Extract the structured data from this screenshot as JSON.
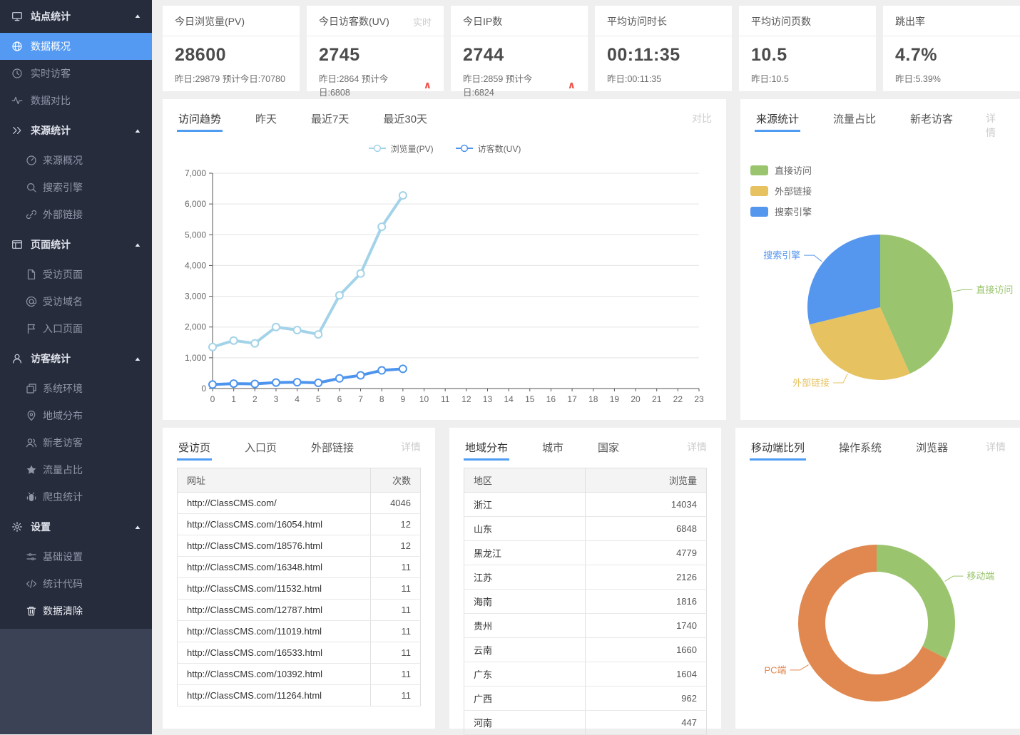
{
  "colors": {
    "accent": "#4e9df2",
    "sidebar_active": "#549af3",
    "arrow_up": "#f0544c"
  },
  "sidebar": {
    "sections": [
      {
        "label": "站点统计",
        "icon": "display-icon",
        "caret": "caret-up-icon",
        "divider": true,
        "items": [
          {
            "label": "数据概况",
            "icon": "globe-icon",
            "active": true
          },
          {
            "label": "实时访客",
            "icon": "clock-icon"
          },
          {
            "label": "数据对比",
            "icon": "pulse-icon"
          }
        ]
      },
      {
        "label": "来源统计",
        "icon": "chevrons-right-icon",
        "caret": "caret-up-icon",
        "items": [
          {
            "label": "来源概况",
            "icon": "gauge-icon",
            "sub": true
          },
          {
            "label": "搜索引擎",
            "icon": "search-icon",
            "sub": true
          },
          {
            "label": "外部链接",
            "icon": "link-icon",
            "sub": true
          }
        ]
      },
      {
        "label": "页面统计",
        "icon": "window-icon",
        "caret": "caret-up-icon",
        "items": [
          {
            "label": "受访页面",
            "icon": "file-icon",
            "sub": true
          },
          {
            "label": "受访域名",
            "icon": "at-icon",
            "sub": true
          },
          {
            "label": "入口页面",
            "icon": "flag-icon",
            "sub": true
          }
        ]
      },
      {
        "label": "访客统计",
        "icon": "user-icon",
        "caret": "caret-up-icon",
        "items": [
          {
            "label": "系统环境",
            "icon": "monitors-icon",
            "sub": true
          },
          {
            "label": "地域分布",
            "icon": "map-pin-icon",
            "sub": true
          },
          {
            "label": "新老访客",
            "icon": "users-icon",
            "sub": true
          },
          {
            "label": "流量占比",
            "icon": "star-icon",
            "sub": true
          },
          {
            "label": "爬虫统计",
            "icon": "bug-icon",
            "sub": true
          }
        ]
      },
      {
        "label": "设置",
        "icon": "gear-icon",
        "caret": "caret-up-icon",
        "items": [
          {
            "label": "基础设置",
            "icon": "sliders-icon",
            "sub": true
          },
          {
            "label": "统计代码",
            "icon": "code-icon",
            "sub": true
          },
          {
            "label": "数据清除",
            "icon": "trash-icon",
            "sub": true,
            "bright": true
          }
        ]
      }
    ]
  },
  "cards": [
    {
      "title": "今日浏览量(PV)",
      "badge": "",
      "value": "28600",
      "sub": "昨日:29879 预计今日:70780",
      "arrow": false
    },
    {
      "title": "今日访客数(UV)",
      "badge": "实时",
      "value": "2745",
      "sub": "昨日:2864 预计今日:6808",
      "arrow": true
    },
    {
      "title": "今日IP数",
      "badge": "",
      "value": "2744",
      "sub": "昨日:2859 预计今日:6824",
      "arrow": true
    },
    {
      "title": "平均访问时长",
      "badge": "",
      "value": "00:11:35",
      "sub": "昨日:00:11:35",
      "arrow": false
    },
    {
      "title": "平均访问页数",
      "badge": "",
      "value": "10.5",
      "sub": "昨日:10.5",
      "arrow": false
    },
    {
      "title": "跳出率",
      "badge": "",
      "value": "4.7%",
      "sub": "昨日:5.39%",
      "arrow": false
    }
  ],
  "trend_panel": {
    "tabs": [
      "访问趋势",
      "昨天",
      "最近7天",
      "最近30天"
    ],
    "action": "对比"
  },
  "source_panel": {
    "tabs": [
      "来源统计",
      "流量占比",
      "新老访客"
    ],
    "action": "详情"
  },
  "pages_panel": {
    "tabs": [
      "受访页",
      "入口页",
      "外部链接"
    ],
    "action": "详情",
    "columns": [
      "网址",
      "次数"
    ],
    "rows": [
      [
        "http://ClassCMS.com/",
        "4046"
      ],
      [
        "http://ClassCMS.com/16054.html",
        "12"
      ],
      [
        "http://ClassCMS.com/18576.html",
        "12"
      ],
      [
        "http://ClassCMS.com/16348.html",
        "11"
      ],
      [
        "http://ClassCMS.com/11532.html",
        "11"
      ],
      [
        "http://ClassCMS.com/12787.html",
        "11"
      ],
      [
        "http://ClassCMS.com/11019.html",
        "11"
      ],
      [
        "http://ClassCMS.com/16533.html",
        "11"
      ],
      [
        "http://ClassCMS.com/10392.html",
        "11"
      ],
      [
        "http://ClassCMS.com/11264.html",
        "11"
      ]
    ]
  },
  "region_panel": {
    "tabs": [
      "地域分布",
      "城市",
      "国家"
    ],
    "action": "详情",
    "columns": [
      "地区",
      "浏览量"
    ],
    "rows": [
      [
        "浙江",
        "14034"
      ],
      [
        "山东",
        "6848"
      ],
      [
        "黑龙江",
        "4779"
      ],
      [
        "江苏",
        "2126"
      ],
      [
        "海南",
        "1816"
      ],
      [
        "贵州",
        "1740"
      ],
      [
        "云南",
        "1660"
      ],
      [
        "广东",
        "1604"
      ],
      [
        "广西",
        "962"
      ],
      [
        "河南",
        "447"
      ]
    ]
  },
  "device_panel": {
    "tabs": [
      "移动端比列",
      "操作系统",
      "浏览器"
    ],
    "action": "详情"
  },
  "chart_data": [
    {
      "id": "trend",
      "type": "line",
      "title": "访问趋势",
      "x": [
        0,
        1,
        2,
        3,
        4,
        5,
        6,
        7,
        8,
        9,
        10,
        11,
        12,
        13,
        14,
        15,
        16,
        17,
        18,
        19,
        20,
        21,
        22,
        23
      ],
      "series": [
        {
          "name": "浏览量(PV)",
          "color": "#a3d3e8",
          "values": [
            1350,
            1560,
            1470,
            2000,
            1900,
            1760,
            3030,
            3740,
            5260,
            6280
          ]
        },
        {
          "name": "访客数(UV)",
          "color": "#4d94ee",
          "values": [
            130,
            160,
            150,
            195,
            205,
            185,
            330,
            430,
            590,
            640
          ]
        }
      ],
      "ylim": [
        0,
        7000
      ],
      "ytick_step": 1000,
      "grid": true,
      "legend_position": "top"
    },
    {
      "id": "source",
      "type": "pie",
      "title": "来源统计",
      "slices": [
        {
          "label": "直接访问",
          "percent": 43.3,
          "color": "#9ac56e"
        },
        {
          "label": "外部链接",
          "percent": 27.9,
          "color": "#e6c260"
        },
        {
          "label": "搜索引擎",
          "percent": 28.8,
          "color": "#5596ee"
        }
      ]
    },
    {
      "id": "device",
      "type": "donut",
      "title": "移动端比列",
      "slices": [
        {
          "label": "移动端",
          "percent": 32.5,
          "color": "#9ac56e"
        },
        {
          "label": "PC端",
          "percent": 67.5,
          "color": "#e0884f"
        }
      ]
    }
  ]
}
